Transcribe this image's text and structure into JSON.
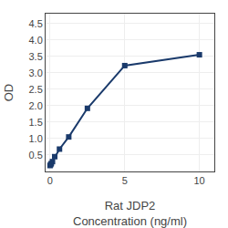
{
  "chart_data": {
    "type": "line",
    "xlabel": "Rat JDP2\nConcentration (ng/ml)",
    "ylabel": "OD",
    "x": [
      0.0,
      0.04,
      0.08,
      0.16,
      0.31,
      0.63,
      1.25,
      2.5,
      5.0,
      10.0
    ],
    "values": [
      0.18,
      0.21,
      0.24,
      0.3,
      0.45,
      0.68,
      1.05,
      1.92,
      3.22,
      3.55
    ],
    "color": "#1a3a6b",
    "marker": "square",
    "line_style": "solid",
    "xlim": [
      -0.3,
      11.0
    ],
    "ylim": [
      0.0,
      4.8
    ],
    "xticks": [
      0,
      5,
      10
    ],
    "yticks": [
      0.5,
      {
        "value": 1.0,
        "label": "1.0"
      },
      1.5,
      {
        "value": 2.0,
        "label": "2.0"
      },
      2.5,
      {
        "value": 3.0,
        "label": "3.0"
      },
      3.5,
      {
        "value": 4.0,
        "label": "4.0"
      },
      4.5
    ],
    "grid": true
  }
}
